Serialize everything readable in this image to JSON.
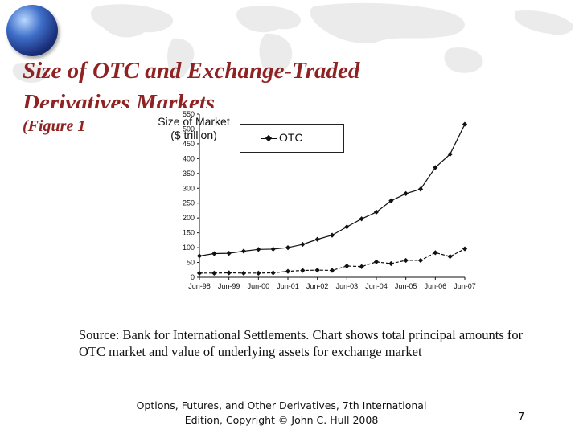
{
  "slide": {
    "title_line1": "Size of OTC and Exchange-Traded",
    "title_line2": "Derivatives Markets",
    "subtitle": "(Figure 1",
    "source": "Source: Bank for International Settlements. Chart shows total principal amounts for OTC market and value of underlying assets for exchange market",
    "footer": "Options, Futures, and Other Derivatives, 7th International Edition, Copyright © John C. Hull 2008",
    "page_number": "7"
  },
  "chart_data": {
    "type": "line",
    "title": "",
    "ylabel_line1": "Size of Market",
    "ylabel_line2": "($ trillion)",
    "xlabel": "",
    "ylim": [
      0,
      550
    ],
    "yticks": [
      "0",
      "50",
      "100",
      "150",
      "200",
      "250",
      "300",
      "350",
      "400",
      "450",
      "500",
      "550"
    ],
    "xticks": [
      "Jun-98",
      "Jun-99",
      "Jun-00",
      "Jun-01",
      "Jun-02",
      "Jun-03",
      "Jun-04",
      "Jun-05",
      "Jun-06",
      "Jun-07"
    ],
    "legend_position": "top",
    "x": [
      "Jun-98",
      "Dec-98",
      "Jun-99",
      "Dec-99",
      "Jun-00",
      "Dec-00",
      "Jun-01",
      "Dec-01",
      "Jun-02",
      "Dec-02",
      "Jun-03",
      "Dec-03",
      "Jun-04",
      "Dec-04",
      "Jun-05",
      "Dec-05",
      "Jun-06",
      "Dec-06",
      "Jun-07"
    ],
    "series": [
      {
        "name": "OTC",
        "color": "#111111",
        "values": [
          72,
          80,
          81,
          88,
          94,
          95,
          100,
          111,
          128,
          142,
          170,
          197,
          220,
          258,
          282,
          297,
          370,
          415,
          516
        ]
      },
      {
        "values": [
          14,
          14,
          15,
          14,
          14,
          15,
          20,
          23,
          24,
          23,
          38,
          36,
          52,
          46,
          57,
          57,
          83,
          70,
          96
        ]
      }
    ]
  }
}
